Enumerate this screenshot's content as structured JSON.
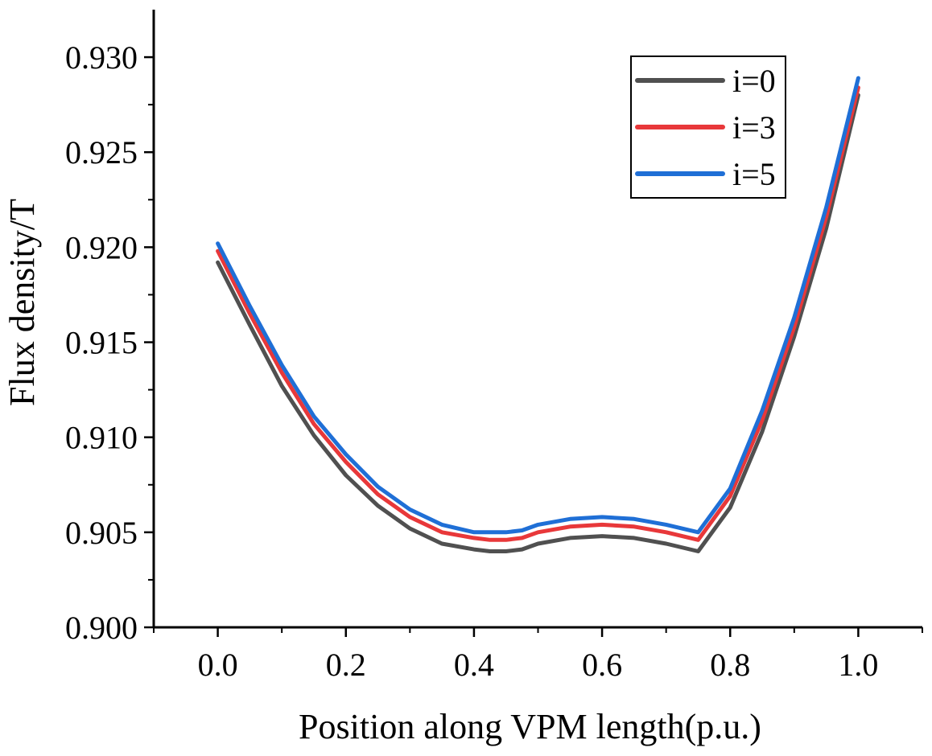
{
  "chart_data": {
    "type": "line",
    "title": "",
    "xlabel": "Position along VPM length(p.u.)",
    "ylabel": "Flux density/T",
    "xlim": [
      -0.1,
      1.1
    ],
    "ylim": [
      0.9,
      0.9325
    ],
    "xticks": [
      0.0,
      0.2,
      0.4,
      0.6,
      0.8,
      1.0
    ],
    "xtick_labels": [
      "0.0",
      "0.2",
      "0.4",
      "0.6",
      "0.8",
      "1.0"
    ],
    "yticks": [
      0.9,
      0.905,
      0.91,
      0.915,
      0.92,
      0.925,
      0.93
    ],
    "ytick_labels": [
      "0.900",
      "0.905",
      "0.910",
      "0.915",
      "0.920",
      "0.925",
      "0.930"
    ],
    "grid": false,
    "legend_position": "top-right",
    "x": [
      0.0,
      0.05,
      0.1,
      0.15,
      0.2,
      0.25,
      0.3,
      0.35,
      0.4,
      0.425,
      0.45,
      0.475,
      0.5,
      0.55,
      0.6,
      0.65,
      0.7,
      0.75,
      0.8,
      0.85,
      0.9,
      0.95,
      1.0
    ],
    "series": [
      {
        "name": "i=0",
        "color": "#505050",
        "values": [
          0.9192,
          0.9159,
          0.9127,
          0.9101,
          0.908,
          0.9064,
          0.9052,
          0.9044,
          0.9041,
          0.904,
          0.904,
          0.9041,
          0.9044,
          0.9047,
          0.9048,
          0.9047,
          0.9044,
          0.904,
          0.9063,
          0.9103,
          0.9153,
          0.921,
          0.928
        ]
      },
      {
        "name": "i=3",
        "color": "#e8383a",
        "values": [
          0.9198,
          0.9165,
          0.9134,
          0.9107,
          0.9087,
          0.907,
          0.9058,
          0.905,
          0.9047,
          0.9046,
          0.9046,
          0.9047,
          0.905,
          0.9053,
          0.9054,
          0.9053,
          0.905,
          0.9046,
          0.9069,
          0.9109,
          0.9158,
          0.9216,
          0.9284
        ]
      },
      {
        "name": "i=5",
        "color": "#1f6fd6",
        "values": [
          0.9202,
          0.9169,
          0.9138,
          0.9111,
          0.9091,
          0.9074,
          0.9062,
          0.9054,
          0.905,
          0.905,
          0.905,
          0.9051,
          0.9054,
          0.9057,
          0.9058,
          0.9057,
          0.9054,
          0.905,
          0.9073,
          0.9114,
          0.9163,
          0.9221,
          0.9289
        ]
      }
    ]
  }
}
